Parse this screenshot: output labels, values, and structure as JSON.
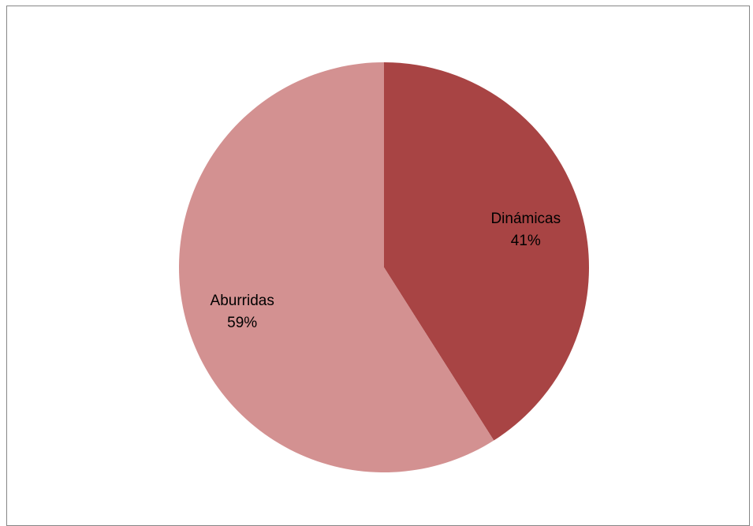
{
  "chart_data": {
    "type": "pie",
    "title": "",
    "slices": [
      {
        "label": "Dinámicas",
        "value": 41,
        "value_label": "41%",
        "color": "#A84444"
      },
      {
        "label": "Aburridas",
        "value": 59,
        "value_label": "59%",
        "color": "#D39191"
      }
    ],
    "start_angle_deg": 0,
    "direction": "clockwise",
    "legend": "none",
    "data_labels": "inside"
  }
}
